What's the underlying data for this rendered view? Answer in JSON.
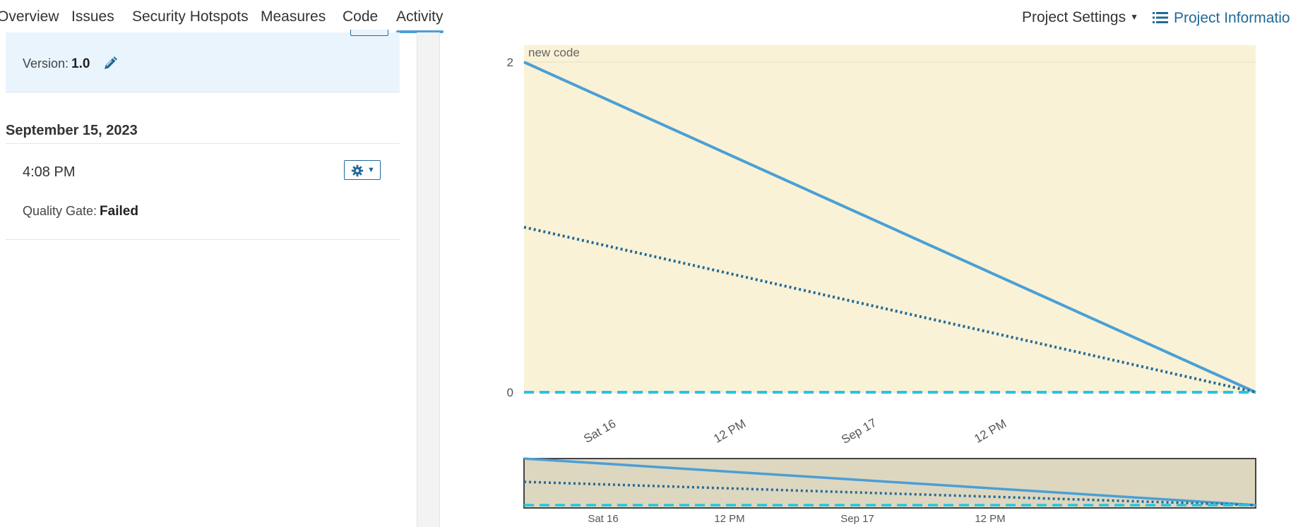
{
  "nav": {
    "tabs": [
      {
        "label": "Overview"
      },
      {
        "label": "Issues"
      },
      {
        "label": "Security Hotspots"
      },
      {
        "label": "Measures"
      },
      {
        "label": "Code"
      },
      {
        "label": "Activity"
      }
    ],
    "project_settings": "Project Settings",
    "project_information": "Project Information"
  },
  "analysis": {
    "version_label": "Version:",
    "version_value": "1.0",
    "date_heading": "September 15, 2023",
    "time": "4:08 PM",
    "quality_gate_label": "Quality Gate:",
    "quality_gate_value": "Failed"
  },
  "colors": {
    "accent": "#236a97",
    "series_solid": "#4b9fd5",
    "series_dotted": "#236a97",
    "series_dashed": "#24c6e0",
    "new_code_bg": "#f9f2d6",
    "overview_bg": "#ddd7c0"
  },
  "chart_data": {
    "type": "line",
    "annotation": "new code",
    "y_ticks": [
      "2",
      "0"
    ],
    "ylim": [
      0,
      2
    ],
    "x_ticks": [
      "Sat 16",
      "12 PM",
      "Sep 17",
      "12 PM"
    ],
    "overview_x_ticks": [
      "Sat 16",
      "12 PM",
      "Sep 17",
      "12 PM"
    ],
    "series": [
      {
        "style": "solid",
        "points": [
          [
            "2023-09-15 4:08 PM",
            2
          ],
          [
            "2023-09-18 5:00 AM",
            0
          ]
        ]
      },
      {
        "style": "dotted",
        "points": [
          [
            "2023-09-15 4:08 PM",
            1
          ],
          [
            "2023-09-18 5:00 AM",
            0
          ]
        ]
      },
      {
        "style": "dashed",
        "points": [
          [
            "2023-09-15 4:08 PM",
            0
          ],
          [
            "2023-09-18 5:00 AM",
            0
          ]
        ]
      }
    ]
  }
}
